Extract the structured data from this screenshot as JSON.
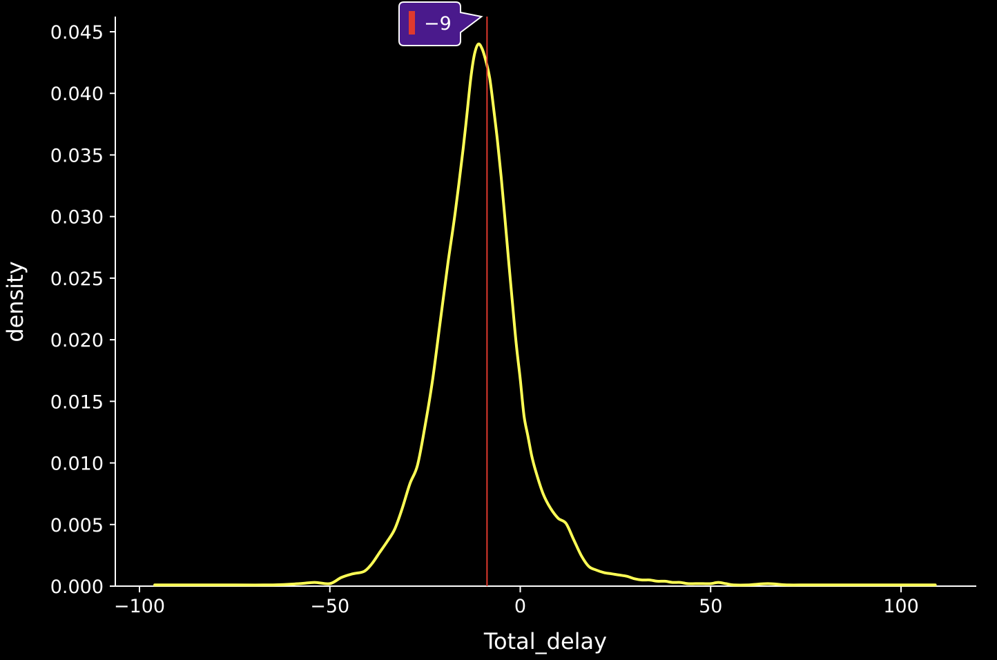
{
  "chart_data": {
    "type": "line",
    "xlabel": "Total_delay",
    "ylabel": "density",
    "xlim": [
      -105,
      120
    ],
    "ylim": [
      0,
      0.046
    ],
    "x_ticks": [
      -100,
      -50,
      0,
      50,
      100
    ],
    "x_tick_labels": [
      "−100",
      "−50",
      "0",
      "50",
      "100"
    ],
    "y_ticks": [
      0,
      0.005,
      0.01,
      0.015,
      0.02,
      0.025,
      0.03,
      0.035,
      0.04,
      0.045
    ],
    "y_tick_labels": [
      "0.000",
      "0.005",
      "0.010",
      "0.015",
      "0.020",
      "0.025",
      "0.030",
      "0.035",
      "0.040",
      "0.045"
    ],
    "grid": false,
    "series": [
      {
        "color": "#ffff55",
        "x": [
          -96,
          -80,
          -65,
          -58,
          -54,
          -50,
          -47,
          -44,
          -41,
          -39,
          -37,
          -35,
          -33,
          -31,
          -29,
          -27,
          -25,
          -23,
          -21,
          -19,
          -17,
          -15,
          -14,
          -13,
          -12,
          -11,
          -10,
          -9,
          -8,
          -7,
          -6,
          -5,
          -4,
          -3,
          -2,
          -1,
          0,
          1,
          2,
          3,
          4,
          6,
          8,
          10,
          12,
          14,
          16,
          18,
          20,
          22,
          24,
          26,
          28,
          30,
          32,
          34,
          36,
          38,
          40,
          42,
          44,
          46,
          48,
          50,
          52,
          54,
          56,
          60,
          65,
          70,
          75,
          80,
          85,
          90,
          95,
          100,
          105,
          109
        ],
        "y": [
          0.0001,
          0.0001,
          0.0001,
          0.0002,
          0.0003,
          0.0002,
          0.0007,
          0.001,
          0.0012,
          0.0018,
          0.0027,
          0.0036,
          0.0046,
          0.0063,
          0.0083,
          0.0098,
          0.013,
          0.0168,
          0.0215,
          0.0262,
          0.0305,
          0.0355,
          0.0383,
          0.0412,
          0.0432,
          0.044,
          0.0436,
          0.0426,
          0.0412,
          0.0388,
          0.0362,
          0.0332,
          0.0298,
          0.0262,
          0.0228,
          0.0195,
          0.0168,
          0.0138,
          0.0122,
          0.0106,
          0.0094,
          0.0075,
          0.0063,
          0.0055,
          0.0051,
          0.0038,
          0.0025,
          0.0016,
          0.0013,
          0.0011,
          0.001,
          0.0009,
          0.0008,
          0.0006,
          0.0005,
          0.0005,
          0.0004,
          0.0004,
          0.0003,
          0.0003,
          0.0002,
          0.0002,
          0.0002,
          0.0002,
          0.0003,
          0.0002,
          0.0001,
          0.0001,
          0.0002,
          0.0001,
          0.0001,
          0.0001,
          0.0001,
          0.0001,
          0.0001,
          0.0001,
          0.0001,
          0.0001
        ]
      }
    ],
    "marker": {
      "x": -9,
      "label": "−9",
      "line_color": "#e03a2e",
      "tooltip_bg": "#4a1a8c",
      "swatch_color": "#e03a2e"
    }
  },
  "colors": {
    "background": "#000000",
    "axis": "#ffffff",
    "text": "#ffffff"
  }
}
